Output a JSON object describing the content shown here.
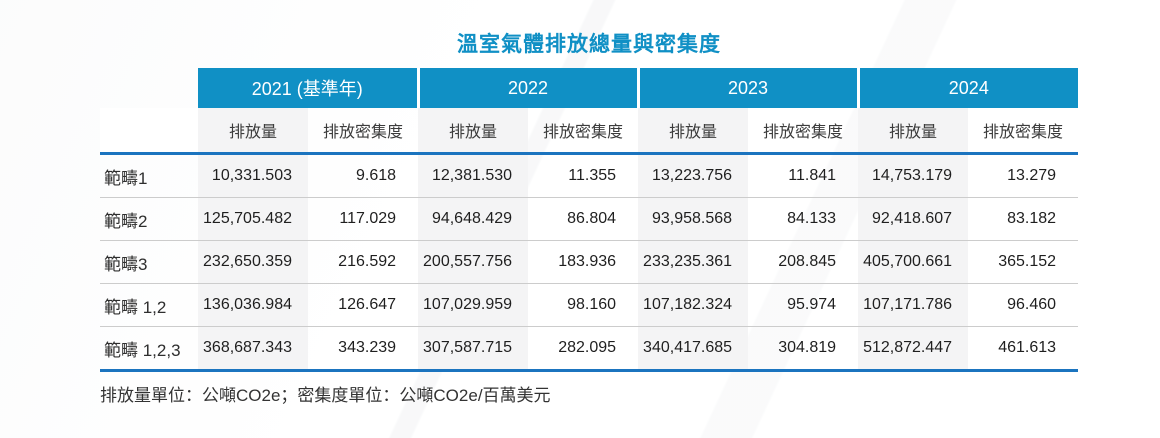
{
  "chart_data": {
    "type": "table",
    "title": "溫室氣體排放總量與密集度",
    "year_groups": [
      {
        "label": "2021 (基準年)"
      },
      {
        "label": "2022"
      },
      {
        "label": "2023"
      },
      {
        "label": "2024"
      }
    ],
    "sub_columns": {
      "emission": "排放量",
      "intensity": "排放密集度"
    },
    "rows": [
      {
        "label": "範疇1",
        "values": [
          "10,331.503",
          "9.618",
          "12,381.530",
          "11.355",
          "13,223.756",
          "11.841",
          "14,753.179",
          "13.279"
        ]
      },
      {
        "label": "範疇2",
        "values": [
          "125,705.482",
          "117.029",
          "94,648.429",
          "86.804",
          "93,958.568",
          "84.133",
          "92,418.607",
          "83.182"
        ]
      },
      {
        "label": "範疇3",
        "values": [
          "232,650.359",
          "216.592",
          "200,557.756",
          "183.936",
          "233,235.361",
          "208.845",
          "405,700.661",
          "365.152"
        ]
      },
      {
        "label": "範疇 1,2",
        "values": [
          "136,036.984",
          "126.647",
          "107,029.959",
          "98.160",
          "107,182.324",
          "95.974",
          "107,171.786",
          "96.460"
        ]
      },
      {
        "label": "範疇 1,2,3",
        "values": [
          "368,687.343",
          "343.239",
          "307,587.715",
          "282.095",
          "340,417.685",
          "304.819",
          "512,872.447",
          "461.613"
        ]
      }
    ],
    "footnote": "排放量單位：公噸CO2e；密集度單位：公噸CO2e/百萬美元"
  },
  "colors": {
    "header_teal": "#1090C5",
    "rule_blue": "#1B74BF",
    "row_divider": "#CCCCCC",
    "emission_column_bg": "#F4F4F5",
    "title_color": "#1090C5"
  }
}
